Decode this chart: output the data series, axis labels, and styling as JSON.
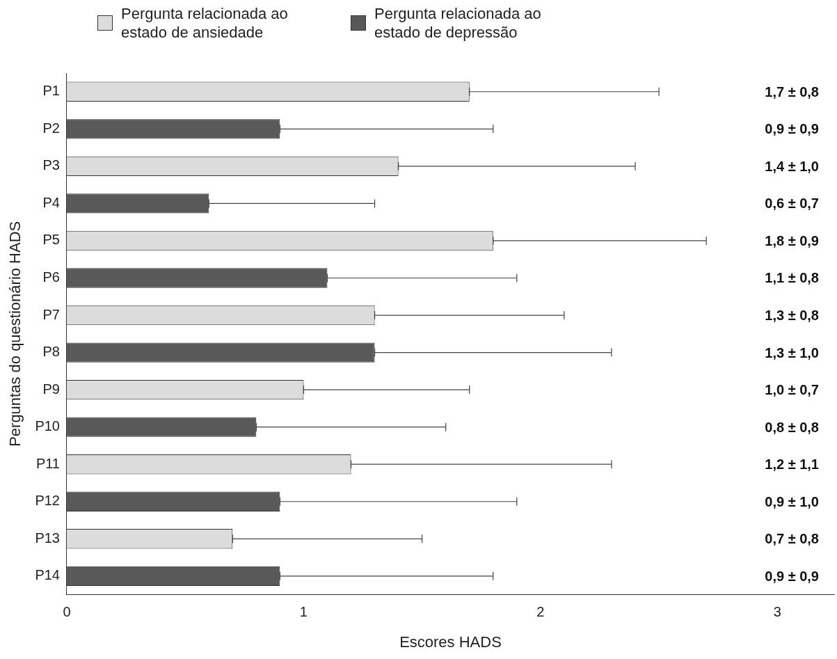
{
  "chart_data": {
    "type": "bar",
    "orientation": "horizontal",
    "xlabel": "Escores HADS",
    "ylabel": "Perguntas do questionário HADS",
    "categories": [
      "P1",
      "P2",
      "P3",
      "P4",
      "P5",
      "P6",
      "P7",
      "P8",
      "P9",
      "P10",
      "P11",
      "P12",
      "P13",
      "P14"
    ],
    "xlim": [
      0,
      3.24
    ],
    "xticks": [
      0,
      1,
      2,
      3
    ],
    "grid": false,
    "legend": "top left",
    "series": [
      {
        "name": "Pergunta relacionada ao estado de ansiedade",
        "color": "#dcdcdc",
        "values": [
          1.7,
          null,
          1.4,
          null,
          1.8,
          null,
          1.3,
          null,
          1.0,
          null,
          1.2,
          null,
          0.7,
          null
        ],
        "errors": [
          [
            1.7,
            2.5
          ],
          null,
          [
            1.4,
            2.4
          ],
          null,
          [
            1.8,
            2.7
          ],
          null,
          [
            1.3,
            2.1
          ],
          null,
          [
            1.0,
            1.7
          ],
          null,
          [
            1.2,
            2.3
          ],
          null,
          [
            0.7,
            1.5
          ],
          null
        ]
      },
      {
        "name": "Pergunta relacionada ao estado de depressão",
        "color": "#595959",
        "values": [
          null,
          0.9,
          null,
          0.6,
          null,
          1.1,
          null,
          1.3,
          null,
          0.8,
          null,
          0.9,
          null,
          0.9
        ],
        "errors": [
          null,
          [
            0.9,
            1.8
          ],
          null,
          [
            0.6,
            1.3
          ],
          null,
          [
            1.1,
            1.9
          ],
          null,
          [
            1.3,
            2.3
          ],
          null,
          [
            0.8,
            1.6
          ],
          null,
          [
            0.9,
            1.9
          ],
          null,
          [
            0.9,
            1.8
          ]
        ]
      }
    ],
    "annotations": [
      "1,7 ± 0,8",
      "0,9 ± 0,9",
      "1,4 ± 1,0",
      "0,6 ± 0,7",
      "1,8 ± 0,9",
      "1,1 ± 0,8",
      "1,3 ± 0,8",
      "1,3 ± 1,0",
      "1,0 ± 0,7",
      "0,8 ± 0,8",
      "1,2 ± 1,1",
      "0,9 ± 1,0",
      "0,7 ± 0,8",
      "0,9 ± 0,9"
    ]
  }
}
